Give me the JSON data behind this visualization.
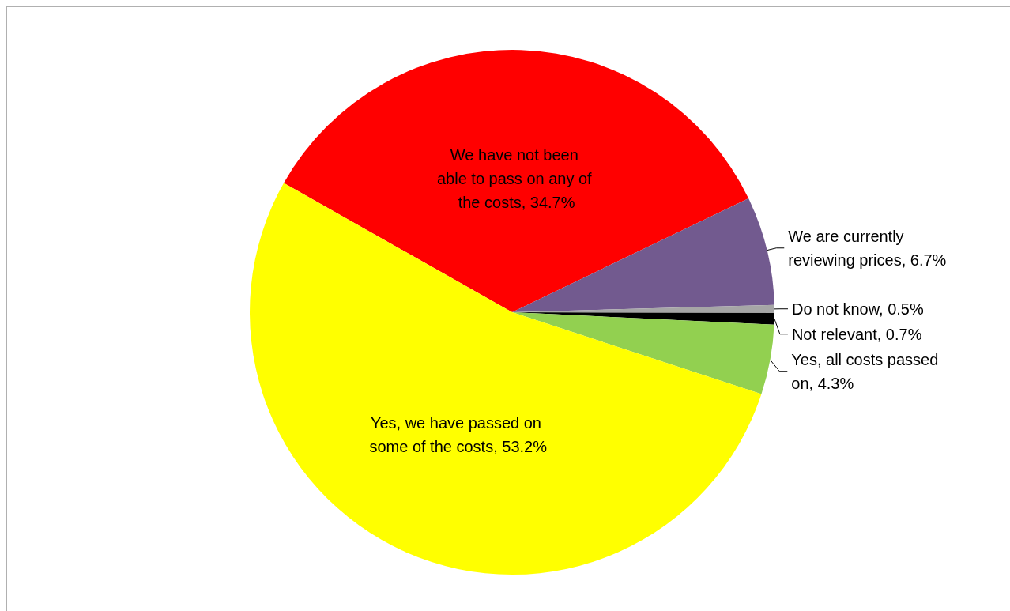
{
  "chart_data": {
    "type": "pie",
    "categories": [
      "We have not been able to pass on any of the costs",
      "We are currently reviewing prices",
      "Do not know",
      "Not relevant",
      "Yes, all costs passed on",
      "Yes, we have passed on some of the costs"
    ],
    "values": [
      34.7,
      6.7,
      0.5,
      0.7,
      4.3,
      53.2
    ],
    "value_labels": [
      "34.7%",
      "6.7%",
      "0.5%",
      "0.7%",
      "4.3%",
      "53.2%"
    ],
    "colors": [
      "#ff0000",
      "#725a8f",
      "#a6a6a6",
      "#000000",
      "#92d050",
      "#ffff00"
    ],
    "legend": false
  }
}
